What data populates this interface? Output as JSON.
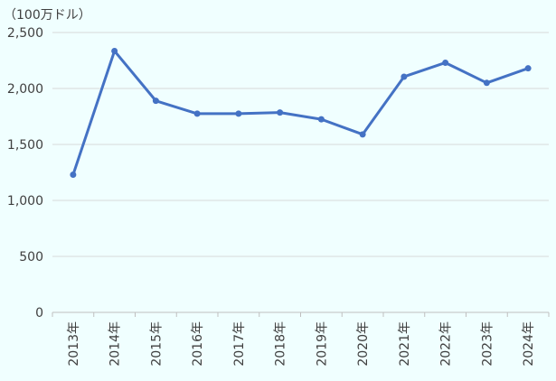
{
  "chart_data": {
    "type": "line",
    "unit_label": "（100万ドル）",
    "categories": [
      "2013年",
      "2014年",
      "2015年",
      "2016年",
      "2017年",
      "2018年",
      "2019年",
      "2020年",
      "2021年",
      "2022年",
      "2023年",
      "2024年"
    ],
    "series": [
      {
        "values": [
          1230,
          2335,
          1890,
          1775,
          1775,
          1785,
          1725,
          1590,
          2105,
          2230,
          2050,
          2180
        ],
        "color": "#4472C4"
      }
    ],
    "yticks": [
      "0",
      "500",
      "1,000",
      "1,500",
      "2,000",
      "2,500"
    ],
    "ylim": [
      0,
      2500
    ],
    "grid": true,
    "legend": false
  }
}
